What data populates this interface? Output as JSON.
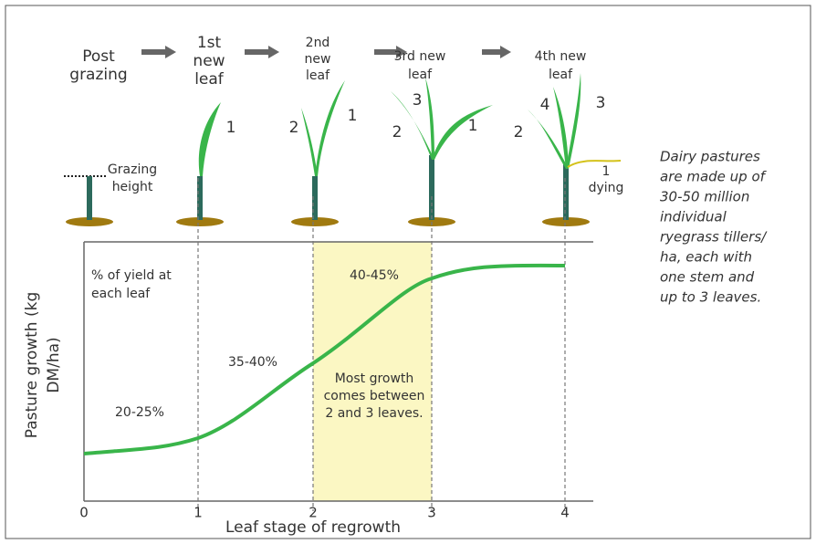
{
  "stages": [
    {
      "lines": [
        "Post",
        "grazing"
      ]
    },
    {
      "lines": [
        "1st",
        "new",
        "leaf"
      ]
    },
    {
      "lines": [
        "2nd",
        "new",
        "leaf"
      ]
    },
    {
      "lines": [
        "3rd new",
        "leaf"
      ]
    },
    {
      "lines": [
        "4th new",
        "leaf"
      ]
    }
  ],
  "grazing_height": [
    "Grazing",
    "height"
  ],
  "leaf_numbers": {
    "plant1": [
      "1"
    ],
    "plant2": [
      "2",
      "1"
    ],
    "plant3": [
      "3",
      "2",
      "1"
    ],
    "plant4": [
      "4",
      "3",
      "2",
      "1",
      "dying"
    ]
  },
  "plot": {
    "yield_label": [
      "% of yield at",
      "each leaf"
    ],
    "segments": [
      "20-25%",
      "35-40%",
      "40-45%"
    ],
    "highlight": [
      "Most growth",
      "comes between",
      "2 and 3 leaves."
    ],
    "y_axis_label": [
      "Pasture growth (kg",
      "DM/ha)"
    ],
    "x_axis_label": "Leaf stage of regrowth",
    "x_ticks": [
      "0",
      "1",
      "2",
      "3",
      "4"
    ]
  },
  "note": [
    "Dairy pastures",
    "are made up of",
    "30-50 million",
    "individual",
    "ryegrass tillers/",
    "ha, each with",
    "one stem and",
    "up to 3 leaves."
  ]
}
